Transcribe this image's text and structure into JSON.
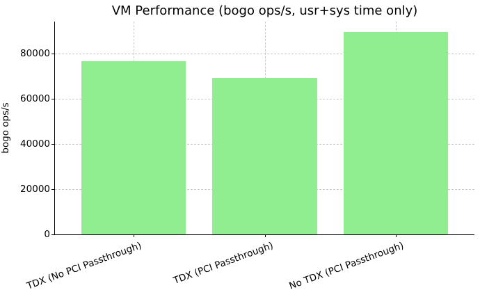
{
  "chart_data": {
    "type": "bar",
    "title": "VM Performance (bogo ops/s, usr+sys time only)",
    "xlabel": "",
    "ylabel": "bogo ops/s",
    "categories": [
      "TDX (No PCI Passthrough)",
      "TDX (PCI Passthrough)",
      "No TDX (PCI Passthrough)"
    ],
    "values": [
      76800,
      69200,
      89700
    ],
    "ylim": [
      0,
      94200
    ],
    "yticks": [
      0,
      20000,
      40000,
      60000,
      80000
    ],
    "ytick_labels": [
      "0",
      "20000",
      "40000",
      "60000",
      "80000"
    ],
    "grid": true,
    "legend": null,
    "bar_color": "#90ee90"
  }
}
